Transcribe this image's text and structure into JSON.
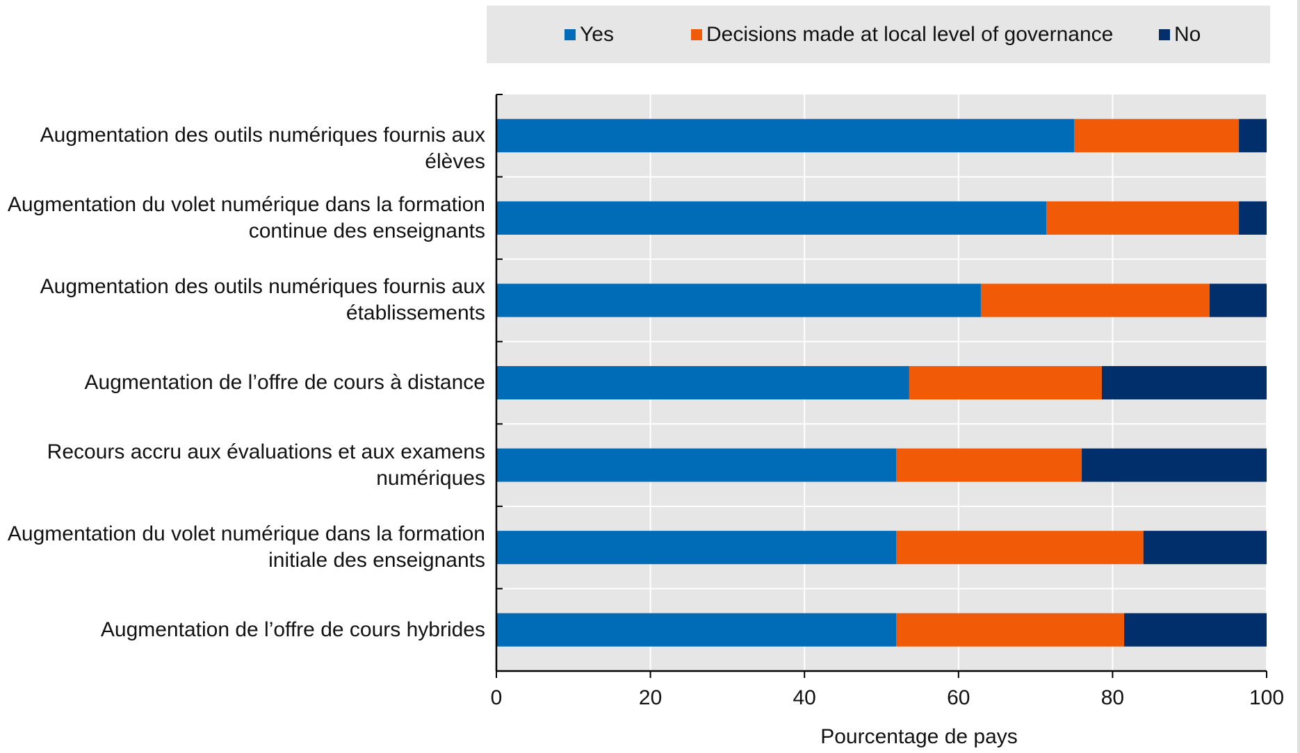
{
  "chart_data": {
    "type": "bar",
    "orientation": "horizontal",
    "stacked": true,
    "categories": [
      "Augmentation des outils numériques fournis aux élèves",
      "Augmentation du volet numérique dans la formation continue des enseignants",
      "Augmentation des outils numériques fournis aux établissements",
      "Augmentation de l’offre de cours à distance",
      "Recours accru aux évaluations et aux examens numériques",
      "Augmentation du volet numérique dans la formation initiale des enseignants",
      "Augmentation de l’offre de cours hybrides"
    ],
    "category_lines": [
      [
        "Augmentation des outils numériques fournis aux élèves"
      ],
      [
        "Augmentation du volet numérique dans la formation",
        "continue des enseignants"
      ],
      [
        "Augmentation des outils numériques fournis aux",
        "établissements"
      ],
      [
        "Augmentation de l’offre de cours à distance"
      ],
      [
        "Recours accru aux évaluations et aux examens",
        "numériques"
      ],
      [
        "Augmentation du volet numérique dans la formation",
        "initiale des enseignants"
      ],
      [
        "Augmentation de l’offre de cours hybrides"
      ]
    ],
    "series": [
      {
        "name": "Yes",
        "color": "#006bb6",
        "values": [
          75,
          71.4,
          62.9,
          53.6,
          51.9,
          51.9,
          51.9
        ]
      },
      {
        "name": "Decisions made at local level of governance",
        "color": "#f15a07",
        "values": [
          21.4,
          25,
          29.7,
          25,
          24.1,
          32.1,
          29.6
        ]
      },
      {
        "name": "No",
        "color": "#002f6c",
        "values": [
          3.6,
          3.6,
          7.4,
          21.4,
          24,
          16,
          18.5
        ]
      }
    ],
    "xlabel": "Pourcentage de pays",
    "ylabel": "",
    "xlim": [
      0,
      100
    ],
    "xticks": [
      "0",
      "20",
      "40",
      "60",
      "80",
      "100"
    ],
    "legend_position": "top",
    "grid": true
  }
}
